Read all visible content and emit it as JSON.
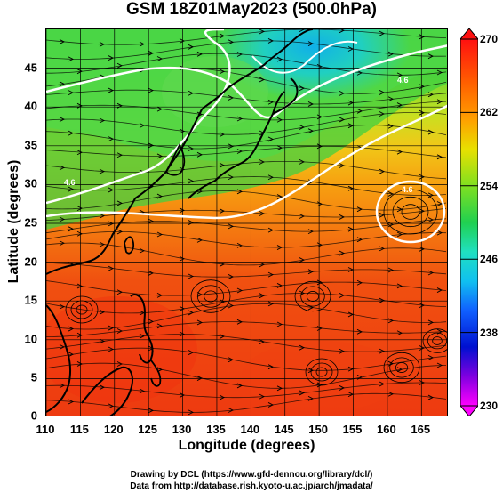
{
  "title": "GSM 18Z01May2023 (500.0hPa)",
  "axes": {
    "xlabel": "Longitude (degrees)",
    "ylabel": "Latitude (degrees)",
    "x_ticks": [
      "110",
      "115",
      "120",
      "125",
      "130",
      "135",
      "140",
      "145",
      "150",
      "155",
      "160",
      "165"
    ],
    "y_ticks": [
      "0",
      "5",
      "10",
      "15",
      "20",
      "25",
      "30",
      "35",
      "40",
      "45"
    ],
    "x_range": [
      110,
      169
    ],
    "y_range": [
      0,
      50
    ]
  },
  "colorbar": {
    "ticks": [
      "230",
      "238",
      "246",
      "254",
      "262",
      "270"
    ],
    "range": [
      230,
      270
    ],
    "colors": [
      "#ff00ff",
      "#8000ff",
      "#0000ff",
      "#0080ff",
      "#00c0ff",
      "#00e0c0",
      "#00e080",
      "#40e040",
      "#a0e020",
      "#e0e000",
      "#ffc000",
      "#ff8000",
      "#ff4000",
      "#ff0000"
    ]
  },
  "credits": {
    "line1": "Drawing by DCL (https://www.gfd-dennou.org/library/dcl/)",
    "line2": "Data from http://database.rish.kyoto-u.ac.jp/arch/jmadata/"
  },
  "contour_labels": [
    "4.6",
    "4.6",
    "4.6"
  ]
}
